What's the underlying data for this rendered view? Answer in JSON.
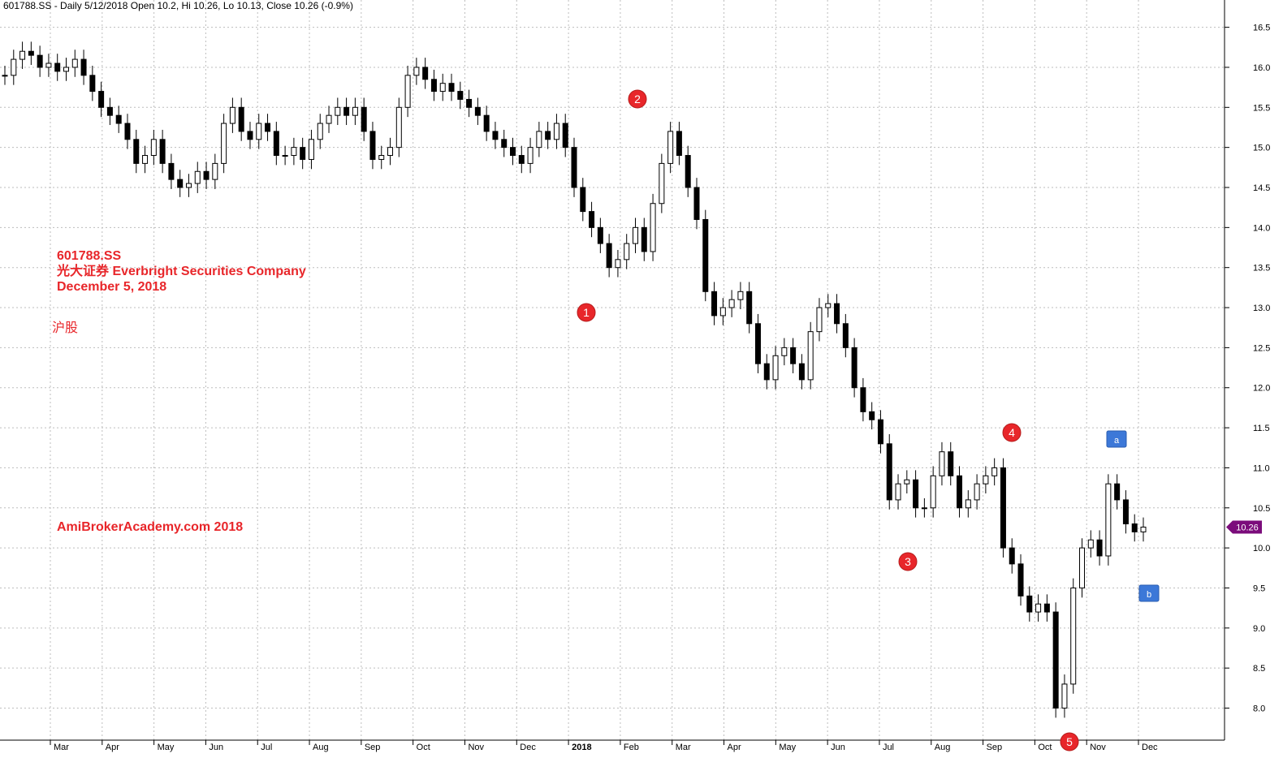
{
  "header": {
    "text": "601788.SS - Daily 5/12/2018 Open 10.2, Hi 10.26, Lo 10.13, Close 10.26 (-0.9%)"
  },
  "annotations": {
    "ticker": "601788.SS",
    "company": "光大证券  Everbright Securities Company",
    "date": "December 5, 2018",
    "market": "沪股",
    "watermark": "AmiBrokerAcademy.com  2018"
  },
  "colors": {
    "annotation": "#e8262a",
    "marker_circle": "#e8262a",
    "marker_square": "#3c78d8",
    "price_tag": "#7b0c7b",
    "grid": "#bdbdbd",
    "candle": "#000000"
  },
  "chart_data": {
    "type": "candlestick",
    "ylim": [
      7.6,
      16.8
    ],
    "y_ticks": [
      "8.0",
      "8.5",
      "9.0",
      "9.5",
      "10.0",
      "10.5",
      "11.0",
      "11.5",
      "12.0",
      "12.5",
      "13.0",
      "13.5",
      "14.0",
      "14.5",
      "15.0",
      "15.5",
      "16.0",
      "16.5"
    ],
    "x_ticks": [
      "Mar",
      "Apr",
      "May",
      "Jun",
      "Jul",
      "Aug",
      "Sep",
      "Oct",
      "Nov",
      "Dec",
      "2018",
      "Feb",
      "Mar",
      "Apr",
      "May",
      "Jun",
      "Jul",
      "Aug",
      "Sep",
      "Oct",
      "Nov",
      "Dec"
    ],
    "last_price": "10.26",
    "closes": [
      15.9,
      16.1,
      16.2,
      16.15,
      16.0,
      16.05,
      15.95,
      16.0,
      16.1,
      15.9,
      15.7,
      15.5,
      15.4,
      15.3,
      15.1,
      14.8,
      14.9,
      15.1,
      14.8,
      14.6,
      14.5,
      14.55,
      14.7,
      14.6,
      14.8,
      15.3,
      15.5,
      15.2,
      15.1,
      15.3,
      15.2,
      14.9,
      14.9,
      15.0,
      14.85,
      15.1,
      15.3,
      15.4,
      15.5,
      15.4,
      15.5,
      15.2,
      14.85,
      14.9,
      15.0,
      15.5,
      15.9,
      16.0,
      15.85,
      15.7,
      15.8,
      15.7,
      15.6,
      15.5,
      15.4,
      15.2,
      15.1,
      15.0,
      14.9,
      14.8,
      15.0,
      15.2,
      15.1,
      15.3,
      15.0,
      14.5,
      14.2,
      14.0,
      13.8,
      13.5,
      13.6,
      13.8,
      14.0,
      13.7,
      14.3,
      14.8,
      15.2,
      14.9,
      14.5,
      14.1,
      13.2,
      12.9,
      13.0,
      13.1,
      13.2,
      12.8,
      12.3,
      12.1,
      12.4,
      12.5,
      12.3,
      12.1,
      12.7,
      13.0,
      13.05,
      12.8,
      12.5,
      12.0,
      11.7,
      11.6,
      11.3,
      10.6,
      10.8,
      10.85,
      10.5,
      10.5,
      10.9,
      11.2,
      10.9,
      10.5,
      10.6,
      10.8,
      10.9,
      11.0,
      10.0,
      9.8,
      9.4,
      9.2,
      9.3,
      9.2,
      8.0,
      8.3,
      9.5,
      10.0,
      10.1,
      9.9,
      10.8,
      10.6,
      10.3,
      10.2,
      10.26
    ]
  },
  "markers": [
    {
      "label": "1",
      "shape": "circle"
    },
    {
      "label": "2",
      "shape": "circle"
    },
    {
      "label": "3",
      "shape": "circle"
    },
    {
      "label": "4",
      "shape": "circle"
    },
    {
      "label": "5",
      "shape": "circle"
    },
    {
      "label": "a",
      "shape": "square"
    },
    {
      "label": "b",
      "shape": "square"
    }
  ]
}
